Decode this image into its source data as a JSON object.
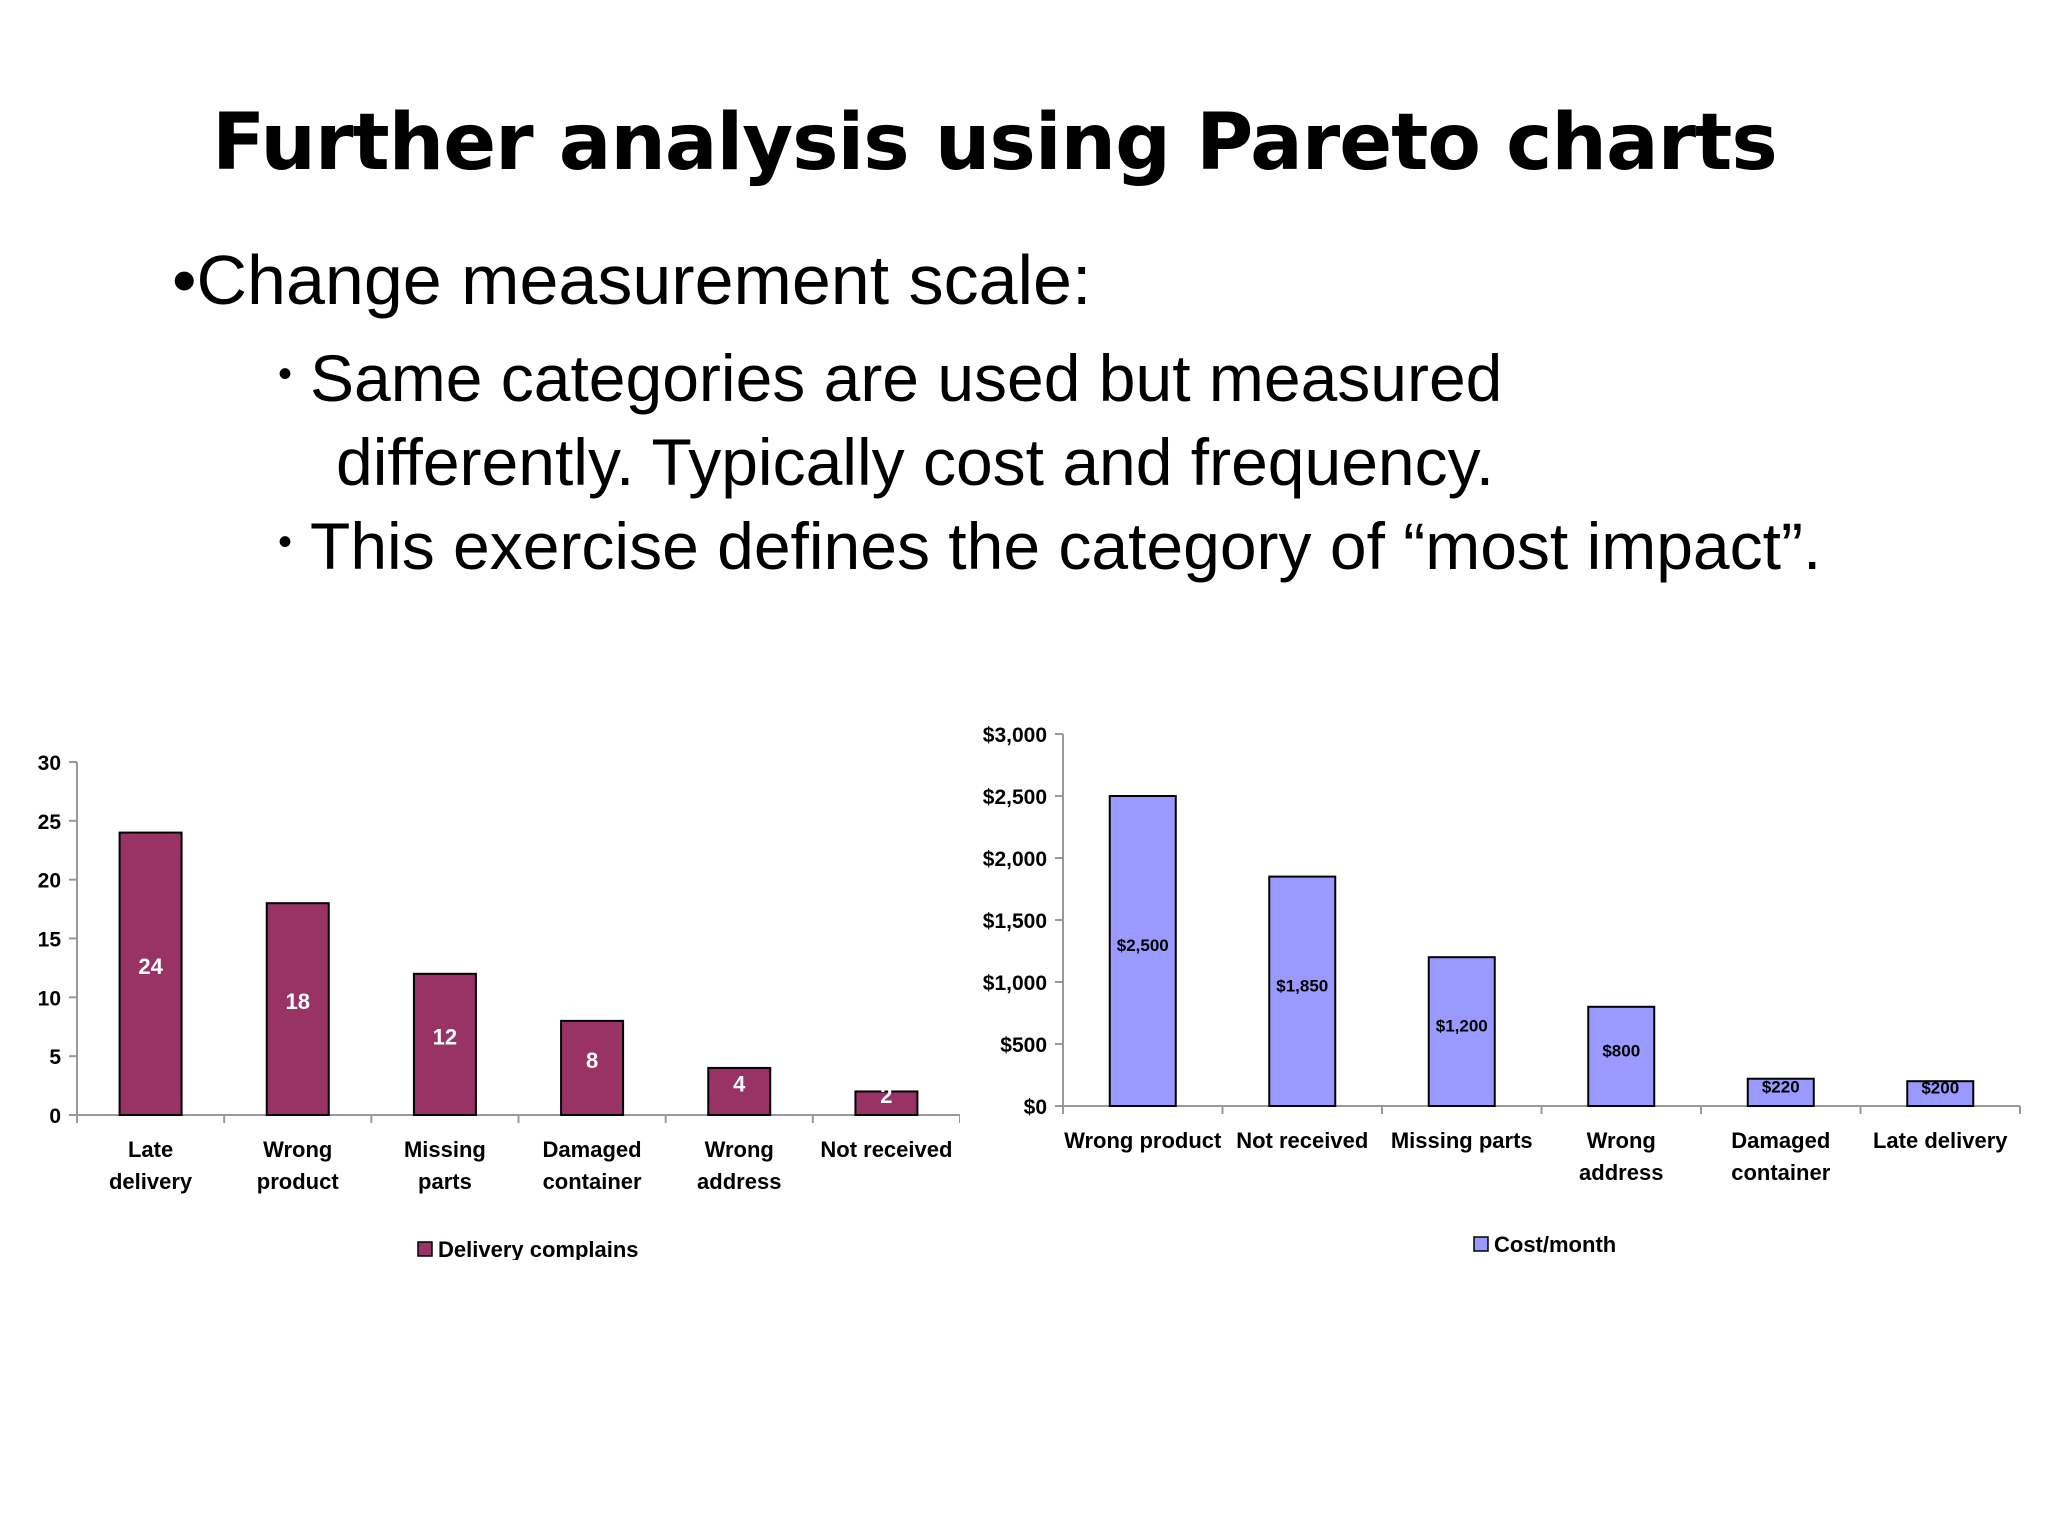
{
  "slide": {
    "title": "Further analysis using Pareto charts",
    "bullet_main": "•Change measurement scale:",
    "bullet_sub1_line1": "Same categories are used but measured",
    "bullet_sub1_line2": "differently. Typically cost and frequency.",
    "bullet_sub2": "This exercise defines the category of “most impact”.",
    "bullet_glyph": "•"
  },
  "chart_data": [
    {
      "type": "bar",
      "categories": [
        [
          "Late",
          "delivery"
        ],
        [
          "Wrong",
          "product"
        ],
        [
          "Missing",
          "parts"
        ],
        [
          "Damaged",
          "container"
        ],
        [
          "Wrong",
          "address"
        ],
        [
          "Not received"
        ]
      ],
      "series": [
        {
          "name": "Delivery complains",
          "values": [
            24,
            18,
            12,
            8,
            4,
            2
          ],
          "color": "#993366"
        }
      ],
      "data_labels": [
        "24",
        "18",
        "12",
        "8",
        "4",
        "2"
      ],
      "yticks": [
        "0",
        "5",
        "10",
        "15",
        "20",
        "25",
        "30"
      ],
      "ylim": [
        0,
        30
      ],
      "legend": "bottom"
    },
    {
      "type": "bar",
      "categories": [
        [
          "Wrong product"
        ],
        [
          "Not received"
        ],
        [
          "Missing parts"
        ],
        [
          "Wrong",
          "address"
        ],
        [
          "Damaged",
          "container"
        ],
        [
          "Late delivery"
        ]
      ],
      "series": [
        {
          "name": "Cost/month",
          "values": [
            2500,
            1850,
            1200,
            800,
            220,
            200
          ],
          "color": "#9999ff"
        }
      ],
      "data_labels": [
        "$2,500",
        "$1,850",
        "$1,200",
        "$800",
        "$220",
        "$200"
      ],
      "yticks": [
        "$0",
        "$500",
        "$1,000",
        "$1,500",
        "$2,000",
        "$2,500",
        "$3,000"
      ],
      "ylim": [
        0,
        3000
      ],
      "legend": "bottom"
    }
  ]
}
